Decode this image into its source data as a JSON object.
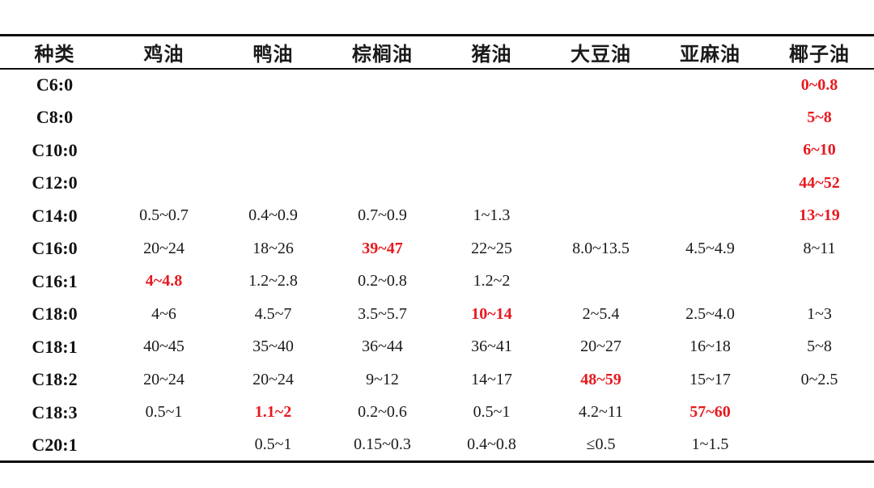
{
  "colors": {
    "highlight_red": "#e8191f",
    "text_black": "#1a1a1a",
    "rule_black": "#0d0d0d",
    "background": "#ffffff"
  },
  "table": {
    "columns": [
      "种类",
      "鸡油",
      "鸭油",
      "棕榈油",
      "猪油",
      "大豆油",
      "亚麻油",
      "椰子油"
    ],
    "rows": [
      {
        "label": "C6:0",
        "cells": [
          "",
          "",
          "",
          "",
          "",
          "",
          "0~0.8"
        ],
        "red": [
          6
        ]
      },
      {
        "label": "C8:0",
        "cells": [
          "",
          "",
          "",
          "",
          "",
          "",
          "5~8"
        ],
        "red": [
          6
        ]
      },
      {
        "label": "C10:0",
        "cells": [
          "",
          "",
          "",
          "",
          "",
          "",
          "6~10"
        ],
        "red": [
          6
        ]
      },
      {
        "label": "C12:0",
        "cells": [
          "",
          "",
          "",
          "",
          "",
          "",
          "44~52"
        ],
        "red": [
          6
        ]
      },
      {
        "label": "C14:0",
        "cells": [
          "0.5~0.7",
          "0.4~0.9",
          "0.7~0.9",
          "1~1.3",
          "",
          "",
          "13~19"
        ],
        "red": [
          6
        ]
      },
      {
        "label": "C16:0",
        "cells": [
          "20~24",
          "18~26",
          "39~47",
          "22~25",
          "8.0~13.5",
          "4.5~4.9",
          "8~11"
        ],
        "red": [
          2
        ]
      },
      {
        "label": "C16:1",
        "cells": [
          "4~4.8",
          "1.2~2.8",
          "0.2~0.8",
          "1.2~2",
          "",
          "",
          ""
        ],
        "red": [
          0
        ]
      },
      {
        "label": "C18:0",
        "cells": [
          "4~6",
          "4.5~7",
          "3.5~5.7",
          "10~14",
          "2~5.4",
          "2.5~4.0",
          "1~3"
        ],
        "red": [
          3
        ]
      },
      {
        "label": "C18:1",
        "cells": [
          "40~45",
          "35~40",
          "36~44",
          "36~41",
          "20~27",
          "16~18",
          "5~8"
        ],
        "red": []
      },
      {
        "label": "C18:2",
        "cells": [
          "20~24",
          "20~24",
          "9~12",
          "14~17",
          "48~59",
          "15~17",
          "0~2.5"
        ],
        "red": [
          4
        ]
      },
      {
        "label": "C18:3",
        "cells": [
          "0.5~1",
          "1.1~2",
          "0.2~0.6",
          "0.5~1",
          "4.2~11",
          "57~60",
          ""
        ],
        "red": [
          1,
          5
        ]
      },
      {
        "label": "C20:1",
        "cells": [
          "",
          "0.5~1",
          "0.15~0.3",
          "0.4~0.8",
          "≤0.5",
          "1~1.5",
          ""
        ],
        "red": []
      }
    ]
  }
}
